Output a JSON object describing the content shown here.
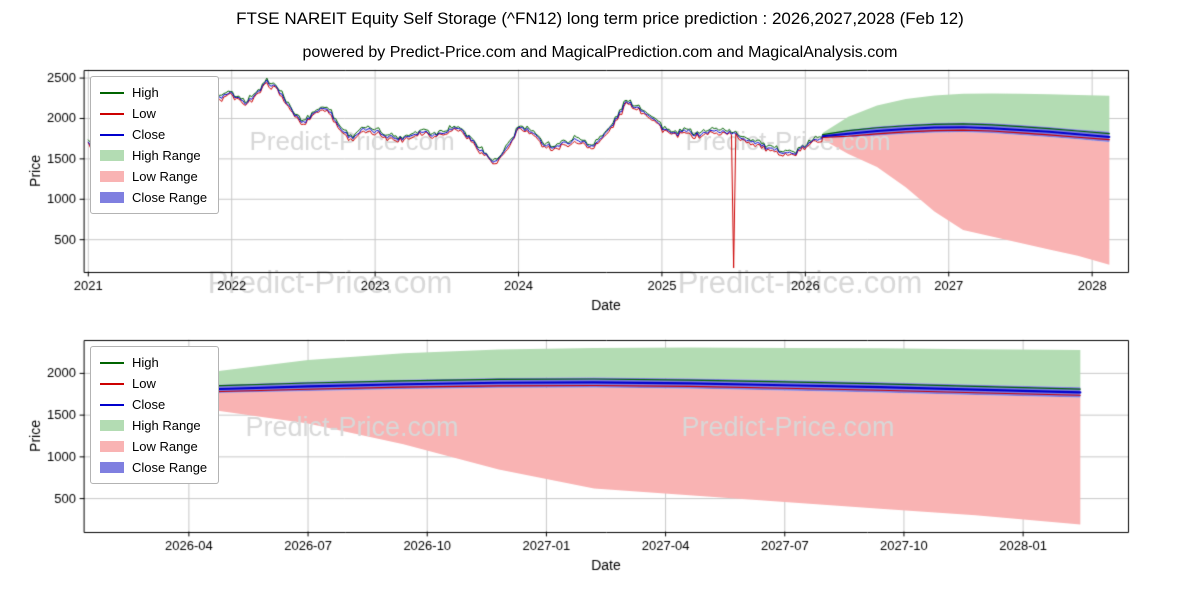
{
  "header": {
    "title": "FTSE NAREIT Equity Self Storage (^FN12) long term price prediction : 2026,2027,2028 (Feb 12)",
    "subtitle": "powered by Predict-Price.com and MagicalPrediction.com and MagicalAnalysis.com"
  },
  "watermark_text": "Predict-Price.com",
  "colors": {
    "high": "#006400",
    "low": "#cc0000",
    "close": "#0000cd",
    "high_range": "#b3dcb3",
    "low_range": "#f9b3b3",
    "close_range": "#7f7fe0",
    "grid": "#c8c8c8",
    "axis": "#000000",
    "watermark": "#d8d8d8"
  },
  "legend": [
    {
      "label": "High",
      "type": "line",
      "color": "#006400"
    },
    {
      "label": "Low",
      "type": "line",
      "color": "#cc0000"
    },
    {
      "label": "Close",
      "type": "line",
      "color": "#0000cd"
    },
    {
      "label": "High Range",
      "type": "patch",
      "color": "#b3dcb3"
    },
    {
      "label": "Low Range",
      "type": "patch",
      "color": "#f9b3b3"
    },
    {
      "label": "Close Range",
      "type": "patch",
      "color": "#7f7fe0"
    }
  ],
  "chart_data": [
    {
      "type": "line",
      "name": "history-and-forecast",
      "xlabel": "Date",
      "ylabel": "Price",
      "xlim": [
        2020.97,
        2028.25
      ],
      "ylim": [
        100,
        2600
      ],
      "yticks": [
        {
          "v": 500,
          "label": "500"
        },
        {
          "v": 1000,
          "label": "1000"
        },
        {
          "v": 1500,
          "label": "1500"
        },
        {
          "v": 2000,
          "label": "2000"
        },
        {
          "v": 2500,
          "label": "2500"
        }
      ],
      "xticks": [
        {
          "v": 2021,
          "label": "2021"
        },
        {
          "v": 2022,
          "label": "2022"
        },
        {
          "v": 2023,
          "label": "2023"
        },
        {
          "v": 2024,
          "label": "2024"
        },
        {
          "v": 2025,
          "label": "2025"
        },
        {
          "v": 2026,
          "label": "2026"
        },
        {
          "v": 2027,
          "label": "2027"
        },
        {
          "v": 2028,
          "label": "2028"
        }
      ],
      "series": {
        "history": {
          "x": [
            2021.0,
            2021.083,
            2021.167,
            2021.25,
            2021.333,
            2021.417,
            2021.5,
            2021.583,
            2021.667,
            2021.75,
            2021.833,
            2021.917,
            2022.0,
            2022.083,
            2022.167,
            2022.25,
            2022.333,
            2022.417,
            2022.5,
            2022.583,
            2022.667,
            2022.75,
            2022.833,
            2022.917,
            2023.0,
            2023.083,
            2023.167,
            2023.25,
            2023.333,
            2023.417,
            2023.5,
            2023.583,
            2023.667,
            2023.75,
            2023.833,
            2023.917,
            2024.0,
            2024.083,
            2024.167,
            2024.25,
            2024.333,
            2024.417,
            2024.5,
            2024.583,
            2024.667,
            2024.75,
            2024.833,
            2024.917,
            2025.0,
            2025.083,
            2025.167,
            2025.25,
            2025.333,
            2025.417,
            2025.5,
            2025.583,
            2025.667,
            2025.75,
            2025.833,
            2025.917,
            2026.0,
            2026.12
          ],
          "close": [
            1690,
            1705,
            1725,
            1760,
            1795,
            1845,
            1895,
            1975,
            2040,
            2080,
            2140,
            2260,
            2310,
            2190,
            2280,
            2460,
            2340,
            2090,
            1940,
            2090,
            2140,
            1890,
            1760,
            1860,
            1840,
            1790,
            1745,
            1795,
            1845,
            1795,
            1850,
            1890,
            1740,
            1590,
            1445,
            1610,
            1890,
            1840,
            1695,
            1645,
            1700,
            1745,
            1650,
            1760,
            1950,
            2200,
            2140,
            2040,
            1890,
            1795,
            1845,
            1795,
            1840,
            1845,
            1810,
            1745,
            1700,
            1610,
            1600,
            1555,
            1660,
            1780
          ],
          "low_spike": {
            "x": 2025.5,
            "low": 150
          }
        },
        "forecast": {
          "x": [
            2026.12,
            2026.3,
            2026.5,
            2026.7,
            2026.9,
            2027.1,
            2027.3,
            2027.5,
            2027.7,
            2027.9,
            2028.12
          ],
          "close": [
            1780,
            1810,
            1845,
            1870,
            1888,
            1893,
            1880,
            1858,
            1835,
            1805,
            1772
          ],
          "high": [
            1800,
            1850,
            1885,
            1910,
            1928,
            1933,
            1920,
            1898,
            1875,
            1845,
            1812
          ],
          "low": [
            1765,
            1780,
            1810,
            1835,
            1850,
            1855,
            1845,
            1822,
            1798,
            1768,
            1738
          ],
          "high_range_top": [
            1820,
            2020,
            2160,
            2240,
            2285,
            2305,
            2310,
            2305,
            2300,
            2290,
            2280
          ],
          "low_range_bottom": [
            1740,
            1560,
            1400,
            1150,
            850,
            620,
            540,
            460,
            380,
            300,
            190
          ],
          "close_range_top": [
            1800,
            1860,
            1900,
            1925,
            1945,
            1950,
            1940,
            1918,
            1895,
            1865,
            1835
          ],
          "close_range_bottom": [
            1760,
            1765,
            1790,
            1812,
            1828,
            1832,
            1820,
            1796,
            1772,
            1742,
            1710
          ]
        }
      }
    },
    {
      "type": "line",
      "name": "forecast-zoom",
      "xlabel": "Date",
      "ylabel": "Price",
      "xlim": [
        2026.03,
        2028.22
      ],
      "ylim": [
        100,
        2400
      ],
      "yticks": [
        {
          "v": 500,
          "label": "500"
        },
        {
          "v": 1000,
          "label": "1000"
        },
        {
          "v": 1500,
          "label": "1500"
        },
        {
          "v": 2000,
          "label": "2000"
        }
      ],
      "xticks": [
        {
          "v": 2026.25,
          "label": "2026-04"
        },
        {
          "v": 2026.5,
          "label": "2026-07"
        },
        {
          "v": 2026.75,
          "label": "2026-10"
        },
        {
          "v": 2027.0,
          "label": "2027-01"
        },
        {
          "v": 2027.25,
          "label": "2027-04"
        },
        {
          "v": 2027.5,
          "label": "2027-07"
        },
        {
          "v": 2027.75,
          "label": "2027-10"
        },
        {
          "v": 2028.0,
          "label": "2028-01"
        }
      ],
      "series": {
        "forecast": {
          "x": [
            2026.12,
            2026.3,
            2026.5,
            2026.7,
            2026.9,
            2027.1,
            2027.3,
            2027.5,
            2027.7,
            2027.9,
            2028.12
          ],
          "close": [
            1780,
            1810,
            1845,
            1870,
            1888,
            1893,
            1880,
            1858,
            1835,
            1805,
            1772
          ],
          "high": [
            1800,
            1850,
            1885,
            1910,
            1928,
            1933,
            1920,
            1898,
            1875,
            1845,
            1812
          ],
          "low": [
            1765,
            1780,
            1810,
            1835,
            1850,
            1855,
            1845,
            1822,
            1798,
            1768,
            1738
          ],
          "high_range_top": [
            1820,
            2020,
            2160,
            2240,
            2285,
            2305,
            2310,
            2305,
            2300,
            2290,
            2280
          ],
          "low_range_bottom": [
            1740,
            1560,
            1400,
            1150,
            850,
            620,
            540,
            460,
            380,
            300,
            190
          ],
          "close_range_top": [
            1800,
            1860,
            1900,
            1925,
            1945,
            1950,
            1940,
            1918,
            1895,
            1865,
            1835
          ],
          "close_range_bottom": [
            1760,
            1765,
            1790,
            1812,
            1828,
            1832,
            1820,
            1796,
            1772,
            1742,
            1710
          ]
        }
      }
    }
  ]
}
